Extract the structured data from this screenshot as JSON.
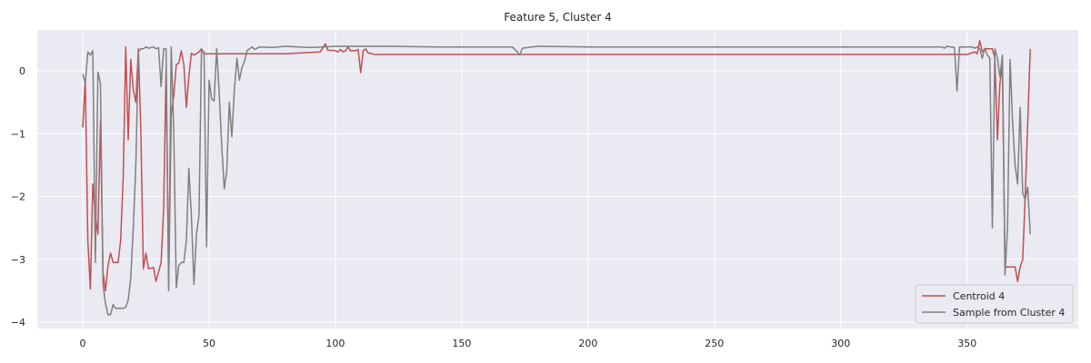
{
  "chart_data": {
    "type": "line",
    "title": "Feature 5, Cluster 4",
    "xlabel": "",
    "ylabel": "",
    "xlim": [
      -18,
      394
    ],
    "ylim": [
      -4.1,
      0.65
    ],
    "xticks": [
      0,
      50,
      100,
      150,
      200,
      250,
      300,
      350
    ],
    "yticks": [
      -4,
      -3,
      -2,
      -1,
      0
    ],
    "grid": true,
    "legend_position": "bottom-right",
    "colors": {
      "plot_bg": "#eaeaf2",
      "grid": "#ffffff",
      "centroid": "#c44e52",
      "sample": "#808080"
    },
    "series": [
      {
        "name": "Centroid 4",
        "color": "#c44e52",
        "points": [
          [
            0,
            -0.9
          ],
          [
            1,
            -0.15
          ],
          [
            2,
            -2.7
          ],
          [
            3,
            -3.47
          ],
          [
            4,
            -1.8
          ],
          [
            5,
            -2.3
          ],
          [
            6,
            -2.6
          ],
          [
            7,
            -0.8
          ],
          [
            8,
            -3.2
          ],
          [
            9,
            -3.5
          ],
          [
            10,
            -3.1
          ],
          [
            11,
            -2.9
          ],
          [
            12,
            -3.05
          ],
          [
            14,
            -3.05
          ],
          [
            15,
            -2.7
          ],
          [
            16,
            -1.7
          ],
          [
            17,
            0.38
          ],
          [
            18,
            -1.1
          ],
          [
            19,
            0.18
          ],
          [
            20,
            -0.3
          ],
          [
            21,
            -0.5
          ],
          [
            22,
            0.35
          ],
          [
            23,
            -0.95
          ],
          [
            24,
            -3.15
          ],
          [
            25,
            -2.9
          ],
          [
            26,
            -3.15
          ],
          [
            28,
            -3.13
          ],
          [
            29,
            -3.35
          ],
          [
            30,
            -3.2
          ],
          [
            31,
            -3.05
          ],
          [
            32,
            -2.2
          ],
          [
            33,
            0.05
          ],
          [
            34,
            -3.4
          ],
          [
            35,
            -0.7
          ],
          [
            36,
            -0.4
          ],
          [
            37,
            0.1
          ],
          [
            38,
            0.12
          ],
          [
            39,
            0.32
          ],
          [
            40,
            0.1
          ],
          [
            41,
            -0.58
          ],
          [
            42,
            -0.1
          ],
          [
            43,
            0.28
          ],
          [
            44,
            0.25
          ],
          [
            46,
            0.3
          ],
          [
            47,
            0.35
          ],
          [
            48,
            0.27
          ],
          [
            60,
            0.27
          ],
          [
            80,
            0.27
          ],
          [
            94,
            0.3
          ],
          [
            96,
            0.43
          ],
          [
            97,
            0.33
          ],
          [
            100,
            0.32
          ],
          [
            101,
            0.3
          ],
          [
            102,
            0.34
          ],
          [
            103,
            0.3
          ],
          [
            104,
            0.32
          ],
          [
            105,
            0.38
          ],
          [
            106,
            0.32
          ],
          [
            108,
            0.32
          ],
          [
            109,
            0.34
          ],
          [
            110,
            -0.03
          ],
          [
            111,
            0.32
          ],
          [
            112,
            0.35
          ],
          [
            113,
            0.28
          ],
          [
            114,
            0.28
          ],
          [
            115,
            0.26
          ],
          [
            120,
            0.26
          ],
          [
            200,
            0.26
          ],
          [
            300,
            0.26
          ],
          [
            350,
            0.26
          ],
          [
            353,
            0.3
          ],
          [
            354,
            0.27
          ],
          [
            355,
            0.48
          ],
          [
            356,
            0.3
          ],
          [
            357,
            0.35
          ],
          [
            360,
            0.35
          ],
          [
            361,
            0.2
          ],
          [
            362,
            -1.1
          ],
          [
            363,
            -0.2
          ],
          [
            364,
            0.08
          ],
          [
            365,
            -3.12
          ],
          [
            367,
            -3.12
          ],
          [
            369,
            -3.12
          ],
          [
            370,
            -3.35
          ],
          [
            371,
            -3.12
          ],
          [
            372,
            -3.0
          ],
          [
            373,
            -2.0
          ],
          [
            375,
            0.35
          ]
        ]
      },
      {
        "name": "Sample from Cluster 4",
        "color": "#808080",
        "points": [
          [
            0,
            -0.05
          ],
          [
            1,
            -0.2
          ],
          [
            2,
            0.3
          ],
          [
            3,
            0.25
          ],
          [
            4,
            0.32
          ],
          [
            5,
            -3.05
          ],
          [
            6,
            -0.02
          ],
          [
            7,
            -0.2
          ],
          [
            8,
            -3.4
          ],
          [
            9,
            -3.7
          ],
          [
            10,
            -3.88
          ],
          [
            11,
            -3.88
          ],
          [
            12,
            -3.72
          ],
          [
            13,
            -3.78
          ],
          [
            14,
            -3.78
          ],
          [
            16,
            -3.78
          ],
          [
            17,
            -3.76
          ],
          [
            18,
            -3.65
          ],
          [
            19,
            -3.3
          ],
          [
            20,
            -2.5
          ],
          [
            21,
            -1.5
          ],
          [
            22,
            0.3
          ],
          [
            23,
            0.35
          ],
          [
            24,
            0.35
          ],
          [
            25,
            0.38
          ],
          [
            26,
            0.36
          ],
          [
            28,
            0.38
          ],
          [
            29,
            0.35
          ],
          [
            30,
            0.37
          ],
          [
            31,
            -0.25
          ],
          [
            32,
            0.35
          ],
          [
            33,
            0.35
          ],
          [
            34,
            -3.5
          ],
          [
            35,
            0.38
          ],
          [
            36,
            -0.95
          ],
          [
            37,
            -3.45
          ],
          [
            38,
            -3.1
          ],
          [
            39,
            -3.05
          ],
          [
            40,
            -3.05
          ],
          [
            41,
            -2.7
          ],
          [
            42,
            -1.55
          ],
          [
            43,
            -2.3
          ],
          [
            44,
            -3.4
          ],
          [
            45,
            -2.6
          ],
          [
            46,
            -2.3
          ],
          [
            47,
            0.33
          ],
          [
            48,
            0.3
          ],
          [
            49,
            -2.8
          ],
          [
            50,
            -0.15
          ],
          [
            51,
            -0.45
          ],
          [
            52,
            -0.48
          ],
          [
            53,
            0.35
          ],
          [
            54,
            -0.35
          ],
          [
            55,
            -1.2
          ],
          [
            56,
            -1.88
          ],
          [
            57,
            -1.6
          ],
          [
            58,
            -0.5
          ],
          [
            59,
            -1.05
          ],
          [
            60,
            -0.3
          ],
          [
            61,
            0.2
          ],
          [
            62,
            -0.15
          ],
          [
            63,
            0.05
          ],
          [
            64,
            0.15
          ],
          [
            65,
            0.32
          ],
          [
            66,
            0.35
          ],
          [
            67,
            0.38
          ],
          [
            68,
            0.34
          ],
          [
            70,
            0.38
          ],
          [
            75,
            0.37
          ],
          [
            80,
            0.39
          ],
          [
            90,
            0.37
          ],
          [
            100,
            0.39
          ],
          [
            120,
            0.39
          ],
          [
            140,
            0.38
          ],
          [
            160,
            0.38
          ],
          [
            170,
            0.38
          ],
          [
            172,
            0.3
          ],
          [
            173,
            0.25
          ],
          [
            174,
            0.36
          ],
          [
            180,
            0.39
          ],
          [
            200,
            0.38
          ],
          [
            250,
            0.38
          ],
          [
            300,
            0.38
          ],
          [
            340,
            0.38
          ],
          [
            341,
            0.36
          ],
          [
            342,
            0.39
          ],
          [
            345,
            0.37
          ],
          [
            346,
            -0.32
          ],
          [
            347,
            0.38
          ],
          [
            352,
            0.38
          ],
          [
            353,
            0.36
          ],
          [
            354,
            0.38
          ],
          [
            355,
            0.35
          ],
          [
            356,
            0.2
          ],
          [
            357,
            0.36
          ],
          [
            358,
            0.25
          ],
          [
            359,
            0.2
          ],
          [
            360,
            -2.5
          ],
          [
            361,
            0.35
          ],
          [
            362,
            0.2
          ],
          [
            363,
            -0.1
          ],
          [
            364,
            0.25
          ],
          [
            365,
            -3.25
          ],
          [
            366,
            -2.5
          ],
          [
            367,
            0.18
          ],
          [
            368,
            -0.8
          ],
          [
            369,
            -1.5
          ],
          [
            370,
            -1.8
          ],
          [
            371,
            -0.58
          ],
          [
            372,
            -1.95
          ],
          [
            373,
            -2.05
          ],
          [
            374,
            -1.85
          ],
          [
            375,
            -2.6
          ]
        ]
      }
    ]
  }
}
